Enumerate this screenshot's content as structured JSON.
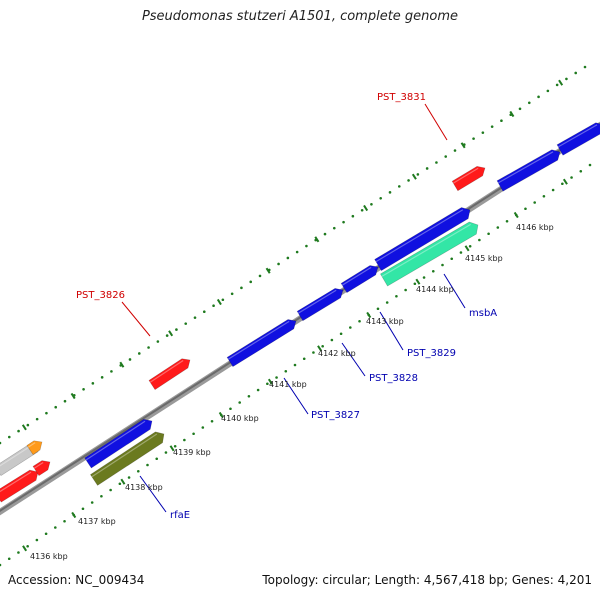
{
  "title": "Pseudomonas stutzeri A1501, complete genome",
  "footer": {
    "accession": "Accession: NC_009434",
    "summary": "Topology: circular; Length: 4,567,418 bp; Genes: 4,201"
  },
  "colors": {
    "backbone": "#8a8a8a",
    "dots": "#1f7a1f",
    "red": "#ff1a1a",
    "blue": "#1010e0",
    "teal": "#33e6a6",
    "olive": "#6b7a1f",
    "gray": "#c8c8c8",
    "orange": "#ff9a1a",
    "label_red": "#d00000",
    "label_blue": "#0000b0"
  },
  "ticks": [
    {
      "label": "4136 kbp"
    },
    {
      "label": "4137 kbp"
    },
    {
      "label": "4138 kbp"
    },
    {
      "label": "4139 kbp"
    },
    {
      "label": "4140 kbp"
    },
    {
      "label": "4141 kbp"
    },
    {
      "label": "4142 kbp"
    },
    {
      "label": "4143 kbp"
    },
    {
      "label": "4144 kbp"
    },
    {
      "label": "4145 kbp"
    },
    {
      "label": "4146 kbp"
    }
  ],
  "gene_labels": [
    {
      "name": "PST_3831",
      "color": "label_red"
    },
    {
      "name": "PST_3826",
      "color": "label_red"
    },
    {
      "name": "msbA",
      "color": "label_blue"
    },
    {
      "name": "PST_3829",
      "color": "label_blue"
    },
    {
      "name": "PST_3828",
      "color": "label_blue"
    },
    {
      "name": "PST_3827",
      "color": "label_blue"
    },
    {
      "name": "rfaE",
      "color": "label_blue"
    }
  ]
}
